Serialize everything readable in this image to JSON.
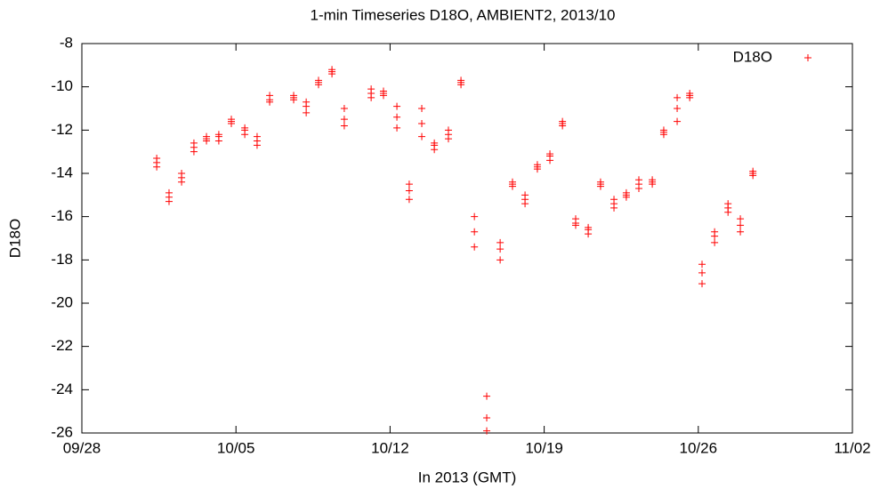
{
  "chart_data": {
    "type": "scatter",
    "title": "1-min Timeseries D18O, AMBIENT2, 2013/10",
    "x_label": "In 2013 (GMT)",
    "y_label": "D18O",
    "xlim": [
      0,
      35
    ],
    "xticks": [
      {
        "value": 0,
        "label": "09/28"
      },
      {
        "value": 7,
        "label": "10/05"
      },
      {
        "value": 14,
        "label": "10/12"
      },
      {
        "value": 21,
        "label": "10/19"
      },
      {
        "value": 28,
        "label": "10/26"
      },
      {
        "value": 35,
        "label": "11/02"
      }
    ],
    "ylim": [
      -26,
      -8
    ],
    "yticks": [
      -26,
      -24,
      -22,
      -20,
      -18,
      -16,
      -14,
      -12,
      -10,
      -8
    ],
    "legend": "top-right",
    "series": [
      {
        "name": "D18O",
        "color": "#ff0000",
        "x": [
          3.4,
          3.4,
          3.4,
          3.96,
          3.96,
          3.96,
          4.53,
          4.53,
          4.53,
          5.09,
          5.09,
          5.09,
          5.66,
          5.66,
          5.66,
          6.22,
          6.22,
          6.22,
          6.79,
          6.79,
          6.79,
          7.4,
          7.4,
          7.4,
          7.96,
          7.96,
          7.96,
          8.53,
          8.53,
          8.53,
          9.62,
          9.62,
          9.62,
          10.19,
          10.19,
          10.19,
          10.75,
          10.75,
          10.75,
          11.36,
          11.36,
          11.36,
          11.92,
          11.92,
          11.92,
          13.14,
          13.14,
          13.14,
          13.7,
          13.7,
          13.7,
          14.31,
          14.31,
          14.31,
          14.87,
          14.87,
          14.87,
          15.44,
          15.44,
          15.44,
          16.01,
          16.01,
          16.01,
          16.65,
          16.65,
          16.65,
          17.22,
          17.22,
          17.22,
          17.83,
          17.83,
          17.83,
          18.39,
          18.39,
          18.39,
          19.0,
          19.0,
          19.0,
          19.56,
          19.56,
          19.56,
          20.13,
          20.13,
          20.13,
          20.69,
          20.69,
          20.69,
          21.26,
          21.26,
          21.26,
          21.83,
          21.83,
          21.83,
          22.43,
          22.43,
          22.43,
          23.0,
          23.0,
          23.0,
          23.56,
          23.56,
          23.56,
          24.17,
          24.17,
          24.17,
          24.73,
          24.73,
          24.73,
          25.3,
          25.3,
          25.3,
          25.91,
          25.91,
          25.91,
          26.43,
          26.43,
          26.43,
          27.04,
          27.04,
          27.04,
          27.61,
          27.61,
          27.61,
          28.17,
          28.17,
          28.17,
          28.74,
          28.74,
          28.74,
          29.35,
          29.35,
          29.35,
          29.91,
          29.91,
          29.91,
          30.48,
          30.48,
          30.48
        ],
        "values": [
          -13.3,
          -13.5,
          -13.7,
          -14.9,
          -15.1,
          -15.3,
          -14.0,
          -14.2,
          -14.4,
          -12.6,
          -12.8,
          -13.0,
          -12.3,
          -12.4,
          -12.5,
          -12.2,
          -12.3,
          -12.5,
          -11.5,
          -11.6,
          -11.7,
          -11.9,
          -12.0,
          -12.2,
          -12.3,
          -12.5,
          -12.7,
          -10.4,
          -10.6,
          -10.7,
          -10.4,
          -10.5,
          -10.6,
          -10.7,
          -10.9,
          -11.2,
          -9.7,
          -9.8,
          -9.9,
          -9.2,
          -9.3,
          -9.4,
          -11.0,
          -11.5,
          -11.8,
          -10.1,
          -10.3,
          -10.5,
          -10.2,
          -10.3,
          -10.4,
          -10.9,
          -11.4,
          -11.9,
          -14.5,
          -14.8,
          -15.2,
          -11.0,
          -11.7,
          -12.3,
          -12.6,
          -12.7,
          -12.9,
          -12.0,
          -12.2,
          -12.4,
          -9.7,
          -9.8,
          -9.9,
          -16.0,
          -16.7,
          -17.4,
          -24.3,
          -25.3,
          -25.9,
          -17.2,
          -17.5,
          -18.0,
          -14.4,
          -14.5,
          -14.6,
          -15.0,
          -15.2,
          -15.4,
          -13.6,
          -13.7,
          -13.8,
          -13.1,
          -13.2,
          -13.4,
          -11.6,
          -11.7,
          -11.8,
          -16.1,
          -16.3,
          -16.4,
          -16.5,
          -16.6,
          -16.8,
          -14.4,
          -14.5,
          -14.6,
          -15.2,
          -15.4,
          -15.6,
          -14.9,
          -15.0,
          -15.1,
          -14.3,
          -14.5,
          -14.7,
          -14.3,
          -14.4,
          -14.5,
          -12.0,
          -12.1,
          -12.2,
          -10.5,
          -11.0,
          -11.6,
          -10.3,
          -10.4,
          -10.5,
          -18.2,
          -18.6,
          -19.1,
          -16.7,
          -16.9,
          -17.2,
          -15.4,
          -15.6,
          -15.8,
          -16.1,
          -16.4,
          -16.7,
          -13.9,
          -14.0,
          -14.1
        ]
      }
    ]
  }
}
